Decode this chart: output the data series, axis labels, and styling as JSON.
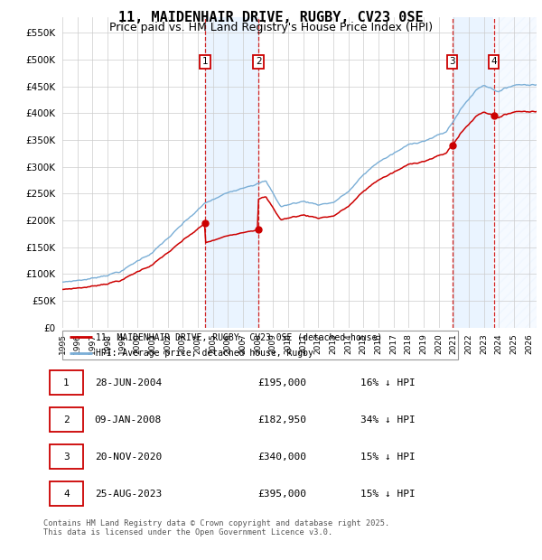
{
  "title": "11, MAIDENHAIR DRIVE, RUGBY, CV23 0SE",
  "subtitle": "Price paid vs. HM Land Registry's House Price Index (HPI)",
  "legend_line1": "11, MAIDENHAIR DRIVE, RUGBY, CV23 0SE (detached house)",
  "legend_line2": "HPI: Average price, detached house, Rugby",
  "footer1": "Contains HM Land Registry data © Crown copyright and database right 2025.",
  "footer2": "This data is licensed under the Open Government Licence v3.0.",
  "transactions": [
    {
      "num": 1,
      "date": "28-JUN-2004",
      "price": "£195,000",
      "note": "16% ↓ HPI",
      "year": 2004.49
    },
    {
      "num": 2,
      "date": "09-JAN-2008",
      "price": "£182,950",
      "note": "34% ↓ HPI",
      "year": 2008.03
    },
    {
      "num": 3,
      "date": "20-NOV-2020",
      "price": "£340,000",
      "note": "15% ↓ HPI",
      "year": 2020.89
    },
    {
      "num": 4,
      "date": "25-AUG-2023",
      "price": "£395,000",
      "note": "15% ↓ HPI",
      "year": 2023.65
    }
  ],
  "transaction_prices": [
    195000,
    182950,
    340000,
    395000
  ],
  "hpi_discounts": [
    0.16,
    0.34,
    0.15,
    0.15
  ],
  "ylim": [
    0,
    580000
  ],
  "yticks": [
    0,
    50000,
    100000,
    150000,
    200000,
    250000,
    300000,
    350000,
    400000,
    450000,
    500000,
    550000
  ],
  "xlim_start": 1995.0,
  "xlim_end": 2026.5,
  "red_color": "#cc0000",
  "blue_color": "#7aaed6",
  "bg_highlight": "#ddeeff",
  "grid_color": "#cccccc",
  "title_fontsize": 11,
  "subtitle_fontsize": 9
}
